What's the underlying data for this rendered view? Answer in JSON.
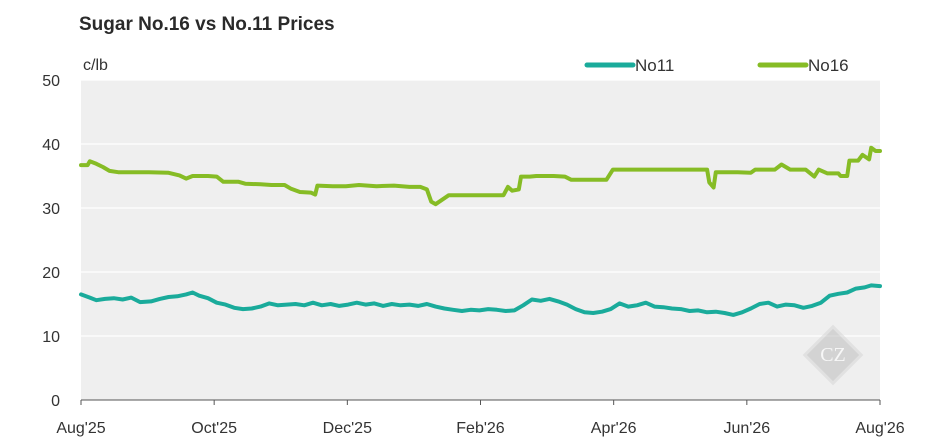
{
  "chart_data": {
    "type": "line",
    "title": "Sugar No.16 vs No.11 Prices",
    "ylabel": "c/lb",
    "ylim": [
      0,
      50
    ],
    "yticks": [
      0,
      10,
      20,
      30,
      40,
      50
    ],
    "xlim": [
      "2025-08-01",
      "2026-08-01"
    ],
    "xticks": [
      "Aug'25",
      "Oct'25",
      "Dec'25",
      "Feb'26",
      "Apr'26",
      "Jun'26",
      "Aug'26"
    ],
    "grid": true,
    "legend_position": "top-right",
    "series": [
      {
        "name": "No11",
        "color": "#1aab9b",
        "points": [
          [
            "2025-08-01",
            16.5
          ],
          [
            "2025-08-05",
            16.0
          ],
          [
            "2025-08-08",
            15.6
          ],
          [
            "2025-08-12",
            15.8
          ],
          [
            "2025-08-16",
            15.9
          ],
          [
            "2025-08-20",
            15.7
          ],
          [
            "2025-08-24",
            16.0
          ],
          [
            "2025-08-28",
            15.3
          ],
          [
            "2025-09-02",
            15.4
          ],
          [
            "2025-09-06",
            15.8
          ],
          [
            "2025-09-10",
            16.1
          ],
          [
            "2025-09-14",
            16.2
          ],
          [
            "2025-09-18",
            16.5
          ],
          [
            "2025-09-21",
            16.8
          ],
          [
            "2025-09-24",
            16.3
          ],
          [
            "2025-09-28",
            15.9
          ],
          [
            "2025-10-02",
            15.2
          ],
          [
            "2025-10-06",
            14.9
          ],
          [
            "2025-10-10",
            14.4
          ],
          [
            "2025-10-14",
            14.2
          ],
          [
            "2025-10-18",
            14.3
          ],
          [
            "2025-10-22",
            14.6
          ],
          [
            "2025-10-26",
            15.1
          ],
          [
            "2025-10-30",
            14.8
          ],
          [
            "2025-11-03",
            14.9
          ],
          [
            "2025-11-07",
            15.0
          ],
          [
            "2025-11-11",
            14.8
          ],
          [
            "2025-11-15",
            15.2
          ],
          [
            "2025-11-19",
            14.8
          ],
          [
            "2025-11-23",
            15.0
          ],
          [
            "2025-11-27",
            14.7
          ],
          [
            "2025-12-01",
            14.9
          ],
          [
            "2025-12-05",
            15.2
          ],
          [
            "2025-12-09",
            14.9
          ],
          [
            "2025-12-13",
            15.1
          ],
          [
            "2025-12-17",
            14.7
          ],
          [
            "2025-12-21",
            15.0
          ],
          [
            "2025-12-25",
            14.8
          ],
          [
            "2025-12-29",
            14.9
          ],
          [
            "2026-01-02",
            14.7
          ],
          [
            "2026-01-06",
            15.0
          ],
          [
            "2026-01-10",
            14.6
          ],
          [
            "2026-01-14",
            14.3
          ],
          [
            "2026-01-18",
            14.1
          ],
          [
            "2026-01-22",
            13.9
          ],
          [
            "2026-01-26",
            14.1
          ],
          [
            "2026-01-30",
            14.0
          ],
          [
            "2026-02-03",
            14.2
          ],
          [
            "2026-02-07",
            14.1
          ],
          [
            "2026-02-11",
            13.9
          ],
          [
            "2026-02-15",
            14.0
          ],
          [
            "2026-02-19",
            14.8
          ],
          [
            "2026-02-23",
            15.7
          ],
          [
            "2026-02-27",
            15.5
          ],
          [
            "2026-03-03",
            15.8
          ],
          [
            "2026-03-07",
            15.4
          ],
          [
            "2026-03-11",
            14.9
          ],
          [
            "2026-03-15",
            14.2
          ],
          [
            "2026-03-19",
            13.7
          ],
          [
            "2026-03-23",
            13.6
          ],
          [
            "2026-03-27",
            13.8
          ],
          [
            "2026-03-31",
            14.2
          ],
          [
            "2026-04-04",
            15.1
          ],
          [
            "2026-04-08",
            14.6
          ],
          [
            "2026-04-12",
            14.8
          ],
          [
            "2026-04-16",
            15.2
          ],
          [
            "2026-04-20",
            14.6
          ],
          [
            "2026-04-24",
            14.5
          ],
          [
            "2026-04-28",
            14.3
          ],
          [
            "2026-05-02",
            14.2
          ],
          [
            "2026-05-06",
            13.9
          ],
          [
            "2026-05-10",
            14.0
          ],
          [
            "2026-05-14",
            13.7
          ],
          [
            "2026-05-18",
            13.8
          ],
          [
            "2026-05-22",
            13.6
          ],
          [
            "2026-05-26",
            13.3
          ],
          [
            "2026-05-30",
            13.7
          ],
          [
            "2026-06-03",
            14.3
          ],
          [
            "2026-06-07",
            15.0
          ],
          [
            "2026-06-11",
            15.2
          ],
          [
            "2026-06-15",
            14.6
          ],
          [
            "2026-06-19",
            14.9
          ],
          [
            "2026-06-23",
            14.8
          ],
          [
            "2026-06-27",
            14.4
          ],
          [
            "2026-07-01",
            14.7
          ],
          [
            "2026-07-05",
            15.2
          ],
          [
            "2026-07-09",
            16.3
          ],
          [
            "2026-07-13",
            16.6
          ],
          [
            "2026-07-17",
            16.8
          ],
          [
            "2026-07-21",
            17.4
          ],
          [
            "2026-07-25",
            17.6
          ],
          [
            "2026-07-28",
            17.9
          ],
          [
            "2026-08-01",
            17.8
          ]
        ]
      },
      {
        "name": "No16",
        "color": "#86bc25",
        "points": [
          [
            "2025-08-01",
            36.7
          ],
          [
            "2025-08-04",
            36.7
          ],
          [
            "2025-08-05",
            37.3
          ],
          [
            "2025-08-08",
            36.9
          ],
          [
            "2025-08-11",
            36.4
          ],
          [
            "2025-08-14",
            35.8
          ],
          [
            "2025-08-18",
            35.6
          ],
          [
            "2025-08-24",
            35.6
          ],
          [
            "2025-09-01",
            35.6
          ],
          [
            "2025-09-10",
            35.5
          ],
          [
            "2025-09-15",
            35.1
          ],
          [
            "2025-09-18",
            34.6
          ],
          [
            "2025-09-21",
            35.0
          ],
          [
            "2025-09-28",
            35.0
          ],
          [
            "2025-10-02",
            34.9
          ],
          [
            "2025-10-05",
            34.1
          ],
          [
            "2025-10-12",
            34.1
          ],
          [
            "2025-10-15",
            33.8
          ],
          [
            "2025-10-22",
            33.7
          ],
          [
            "2025-10-27",
            33.6
          ],
          [
            "2025-11-02",
            33.6
          ],
          [
            "2025-11-05",
            33.0
          ],
          [
            "2025-11-09",
            32.5
          ],
          [
            "2025-11-14",
            32.4
          ],
          [
            "2025-11-16",
            32.1
          ],
          [
            "2025-11-17",
            33.5
          ],
          [
            "2025-11-24",
            33.4
          ],
          [
            "2025-11-30",
            33.4
          ],
          [
            "2025-12-06",
            33.6
          ],
          [
            "2025-12-14",
            33.4
          ],
          [
            "2025-12-22",
            33.5
          ],
          [
            "2025-12-29",
            33.3
          ],
          [
            "2026-01-03",
            33.3
          ],
          [
            "2026-01-06",
            32.9
          ],
          [
            "2026-01-08",
            31.0
          ],
          [
            "2026-01-10",
            30.6
          ],
          [
            "2026-01-13",
            31.3
          ],
          [
            "2026-01-16",
            32.0
          ],
          [
            "2026-01-25",
            32.0
          ],
          [
            "2026-02-05",
            32.0
          ],
          [
            "2026-02-10",
            32.0
          ],
          [
            "2026-02-12",
            33.3
          ],
          [
            "2026-02-14",
            32.7
          ],
          [
            "2026-02-17",
            32.9
          ],
          [
            "2026-02-18",
            34.9
          ],
          [
            "2026-02-22",
            34.9
          ],
          [
            "2026-02-25",
            35.0
          ],
          [
            "2026-03-05",
            35.0
          ],
          [
            "2026-03-10",
            34.9
          ],
          [
            "2026-03-13",
            34.4
          ],
          [
            "2026-03-20",
            34.4
          ],
          [
            "2026-03-29",
            34.4
          ],
          [
            "2026-04-01",
            36.0
          ],
          [
            "2026-04-20",
            36.0
          ],
          [
            "2026-05-05",
            36.0
          ],
          [
            "2026-05-14",
            36.0
          ],
          [
            "2026-05-15",
            34.0
          ],
          [
            "2026-05-17",
            33.2
          ],
          [
            "2026-05-18",
            35.6
          ],
          [
            "2026-05-28",
            35.6
          ],
          [
            "2026-06-03",
            35.5
          ],
          [
            "2026-06-05",
            36.0
          ],
          [
            "2026-06-14",
            36.0
          ],
          [
            "2026-06-17",
            36.8
          ],
          [
            "2026-06-21",
            36.0
          ],
          [
            "2026-06-28",
            36.0
          ],
          [
            "2026-07-02",
            34.9
          ],
          [
            "2026-07-04",
            36.0
          ],
          [
            "2026-07-08",
            35.4
          ],
          [
            "2026-07-13",
            35.4
          ],
          [
            "2026-07-14",
            35.0
          ],
          [
            "2026-07-17",
            35.0
          ],
          [
            "2026-07-18",
            37.4
          ],
          [
            "2026-07-22",
            37.4
          ],
          [
            "2026-07-24",
            38.3
          ],
          [
            "2026-07-27",
            37.6
          ],
          [
            "2026-07-28",
            39.4
          ],
          [
            "2026-07-30",
            38.9
          ],
          [
            "2026-08-01",
            38.9
          ]
        ]
      }
    ]
  }
}
